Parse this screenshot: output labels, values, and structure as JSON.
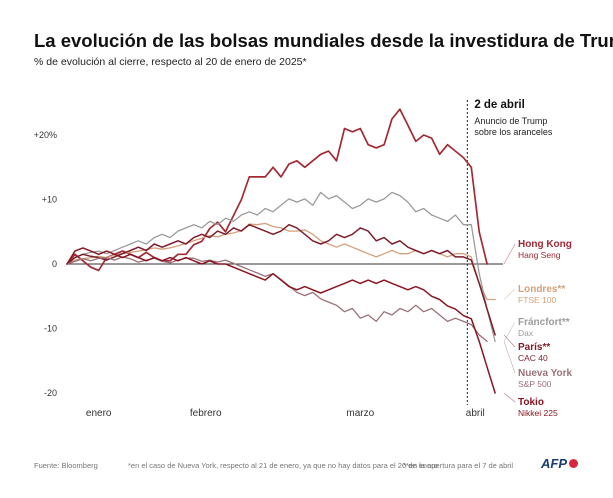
{
  "header": {
    "title": "La evolución de las bolsas mundiales desde la investidura de Trump",
    "subtitle": "% de evolución al cierre, respecto al 20 de enero de 2025*"
  },
  "footer": {
    "source": "Fuente: Bloomberg",
    "note1": "*en el caso de Nueva York, respecto al 21 de enero, ya que no hay datos para el 20 de enero",
    "note2": "**en la apertura para el 7 de abril",
    "logo": "AFP"
  },
  "chart_data": {
    "type": "line",
    "title": "La evolución de las bolsas mundiales desde la investidura de Trump",
    "subtitle": "% de evolución al cierre, respecto al 20 de enero de 2025*",
    "xlabel": "",
    "ylabel": "",
    "x_index_range": [
      0,
      55
    ],
    "ylim": [
      -20.5,
      24.5
    ],
    "y_ticks": [
      {
        "value": 20,
        "label": "+20%"
      },
      {
        "value": 10,
        "label": "+10"
      },
      {
        "value": 0,
        "label": "0"
      },
      {
        "value": -10,
        "label": "-10"
      },
      {
        "value": -20,
        "label": "-20"
      }
    ],
    "x_month_labels": [
      {
        "label": "enero",
        "x": 4
      },
      {
        "label": "febrero",
        "x": 17.5
      },
      {
        "label": "marzo",
        "x": 37
      },
      {
        "label": "abril",
        "x": 51.5
      }
    ],
    "grid": false,
    "annotation": {
      "x": 50.5,
      "date": "2 de abril",
      "lines": [
        "Anuncio de Trump",
        "sobre los aranceles"
      ]
    },
    "series": [
      {
        "name": "Hong Kong",
        "index": "Hang Seng",
        "color": "#a32a35",
        "width": 1.7,
        "values": [
          0,
          1.5,
          0.5,
          -0.5,
          -1,
          1,
          1.5,
          2,
          1.5,
          1,
          1.8,
          1,
          0.5,
          0.5,
          1.5,
          1.5,
          3,
          3.5,
          5.5,
          6.5,
          5,
          7.5,
          10,
          13.5,
          13.5,
          13.5,
          15,
          13.5,
          15.5,
          16,
          15,
          16,
          17,
          17.5,
          16,
          21,
          20.5,
          21,
          18.5,
          18,
          18.5,
          22.5,
          24,
          21.5,
          19,
          20,
          19.5,
          17,
          18.5,
          17.5,
          16.5,
          15,
          5,
          0
        ]
      },
      {
        "name": "Londres**",
        "index": "FTSE 100",
        "color": "#d4a07b",
        "width": 1.3,
        "values": [
          0,
          0.6,
          0.8,
          1,
          1.2,
          1,
          1.4,
          1.6,
          1.8,
          2,
          2.2,
          2.5,
          2.3,
          2.5,
          2.8,
          3.2,
          3.6,
          4,
          4.4,
          4.2,
          4.6,
          4.8,
          5.2,
          6.2,
          6.1,
          6.3,
          5.8,
          5.6,
          5.1,
          5.1,
          5.3,
          4.6,
          3.6,
          3.1,
          2.6,
          3.1,
          2.6,
          2.1,
          1.6,
          1.1,
          1.6,
          2.1,
          1.6,
          1.6,
          2.1,
          1.6,
          2.1,
          1.6,
          1.1,
          1.6,
          1.6,
          1.1,
          -3,
          -5.5,
          -5.5
        ]
      },
      {
        "name": "Fráncfort**",
        "index": "Dax",
        "color": "#9b9b9b",
        "width": 1.3,
        "values": [
          0,
          1,
          1.5,
          1.8,
          2,
          1.6,
          2.1,
          2.6,
          3.1,
          3.6,
          3.1,
          4.1,
          4.6,
          4.1,
          5.1,
          5.6,
          6.1,
          5.6,
          6.6,
          6.1,
          7.1,
          6.6,
          7.6,
          8.1,
          7.6,
          8.6,
          8.1,
          9.1,
          10.1,
          9.6,
          10.1,
          9.1,
          11.1,
          10.1,
          10.6,
          9.6,
          8.6,
          9.1,
          10.1,
          9.6,
          10.1,
          11.1,
          10.6,
          9.6,
          8.1,
          8.6,
          7.6,
          7.1,
          6.6,
          7.6,
          6.1,
          6.1,
          -1.5,
          -7,
          -12
        ]
      },
      {
        "name": "París**",
        "index": "CAC 40",
        "color": "#7d1d2c",
        "width": 1.5,
        "values": [
          0,
          1,
          1.5,
          1.2,
          1,
          0.6,
          1.1,
          1.6,
          2.1,
          2.6,
          2.1,
          3.1,
          2.6,
          3.1,
          3.6,
          3.1,
          4.1,
          4.6,
          4.1,
          5.1,
          4.6,
          5.6,
          5.1,
          6.1,
          5.6,
          5.1,
          4.6,
          5.1,
          6.1,
          5.6,
          4.6,
          3.6,
          3.1,
          3.6,
          4.6,
          4.1,
          4.6,
          5.6,
          5.1,
          3.6,
          4.1,
          3.1,
          3.6,
          2.6,
          2.1,
          1.6,
          2.1,
          1.6,
          2.1,
          1.1,
          1.1,
          0.6,
          -3,
          -7,
          -11
        ]
      },
      {
        "name": "Nueva York",
        "index": "S&P 500",
        "color": "#9a7178",
        "width": 1.3,
        "values": [
          0,
          0.4,
          0.8,
          0.5,
          0.9,
          1,
          0.6,
          1.1,
          0.8,
          0.3,
          0.6,
          0.9,
          0.4,
          0.2,
          0.6,
          0.9,
          0.9,
          0.4,
          0.6,
          0.3,
          0.6,
          0.1,
          -0.4,
          -0.9,
          -1.4,
          -1.9,
          -1.5,
          -2.4,
          -3.4,
          -4.4,
          -4.9,
          -4.4,
          -5.4,
          -5.9,
          -6.4,
          -7.4,
          -6.9,
          -8.4,
          -7.9,
          -8.9,
          -7.4,
          -7.9,
          -6.9,
          -7.4,
          -6.4,
          -7.4,
          -6.9,
          -7.9,
          -8.9,
          -8.4,
          -8.9,
          -9.4,
          -11,
          -12
        ]
      },
      {
        "name": "Tokio",
        "index": "Nikkei 225",
        "color": "#8a1520",
        "width": 1.5,
        "values": [
          0,
          2,
          2.5,
          2,
          1.5,
          2,
          1.5,
          1,
          1.5,
          1,
          0.5,
          1,
          0.5,
          1,
          0.5,
          1,
          0.5,
          0,
          0.5,
          0,
          0,
          -0.5,
          -1,
          -1.5,
          -2,
          -2.5,
          -1.5,
          -2.5,
          -3.5,
          -4,
          -3.5,
          -4,
          -4.5,
          -4,
          -3.5,
          -3,
          -2.5,
          -3,
          -2.5,
          -3,
          -2.5,
          -3,
          -3.5,
          -4,
          -3.5,
          -4,
          -5,
          -5.5,
          -6.5,
          -7,
          -8,
          -8.5,
          -12,
          -16,
          -20
        ]
      }
    ]
  }
}
